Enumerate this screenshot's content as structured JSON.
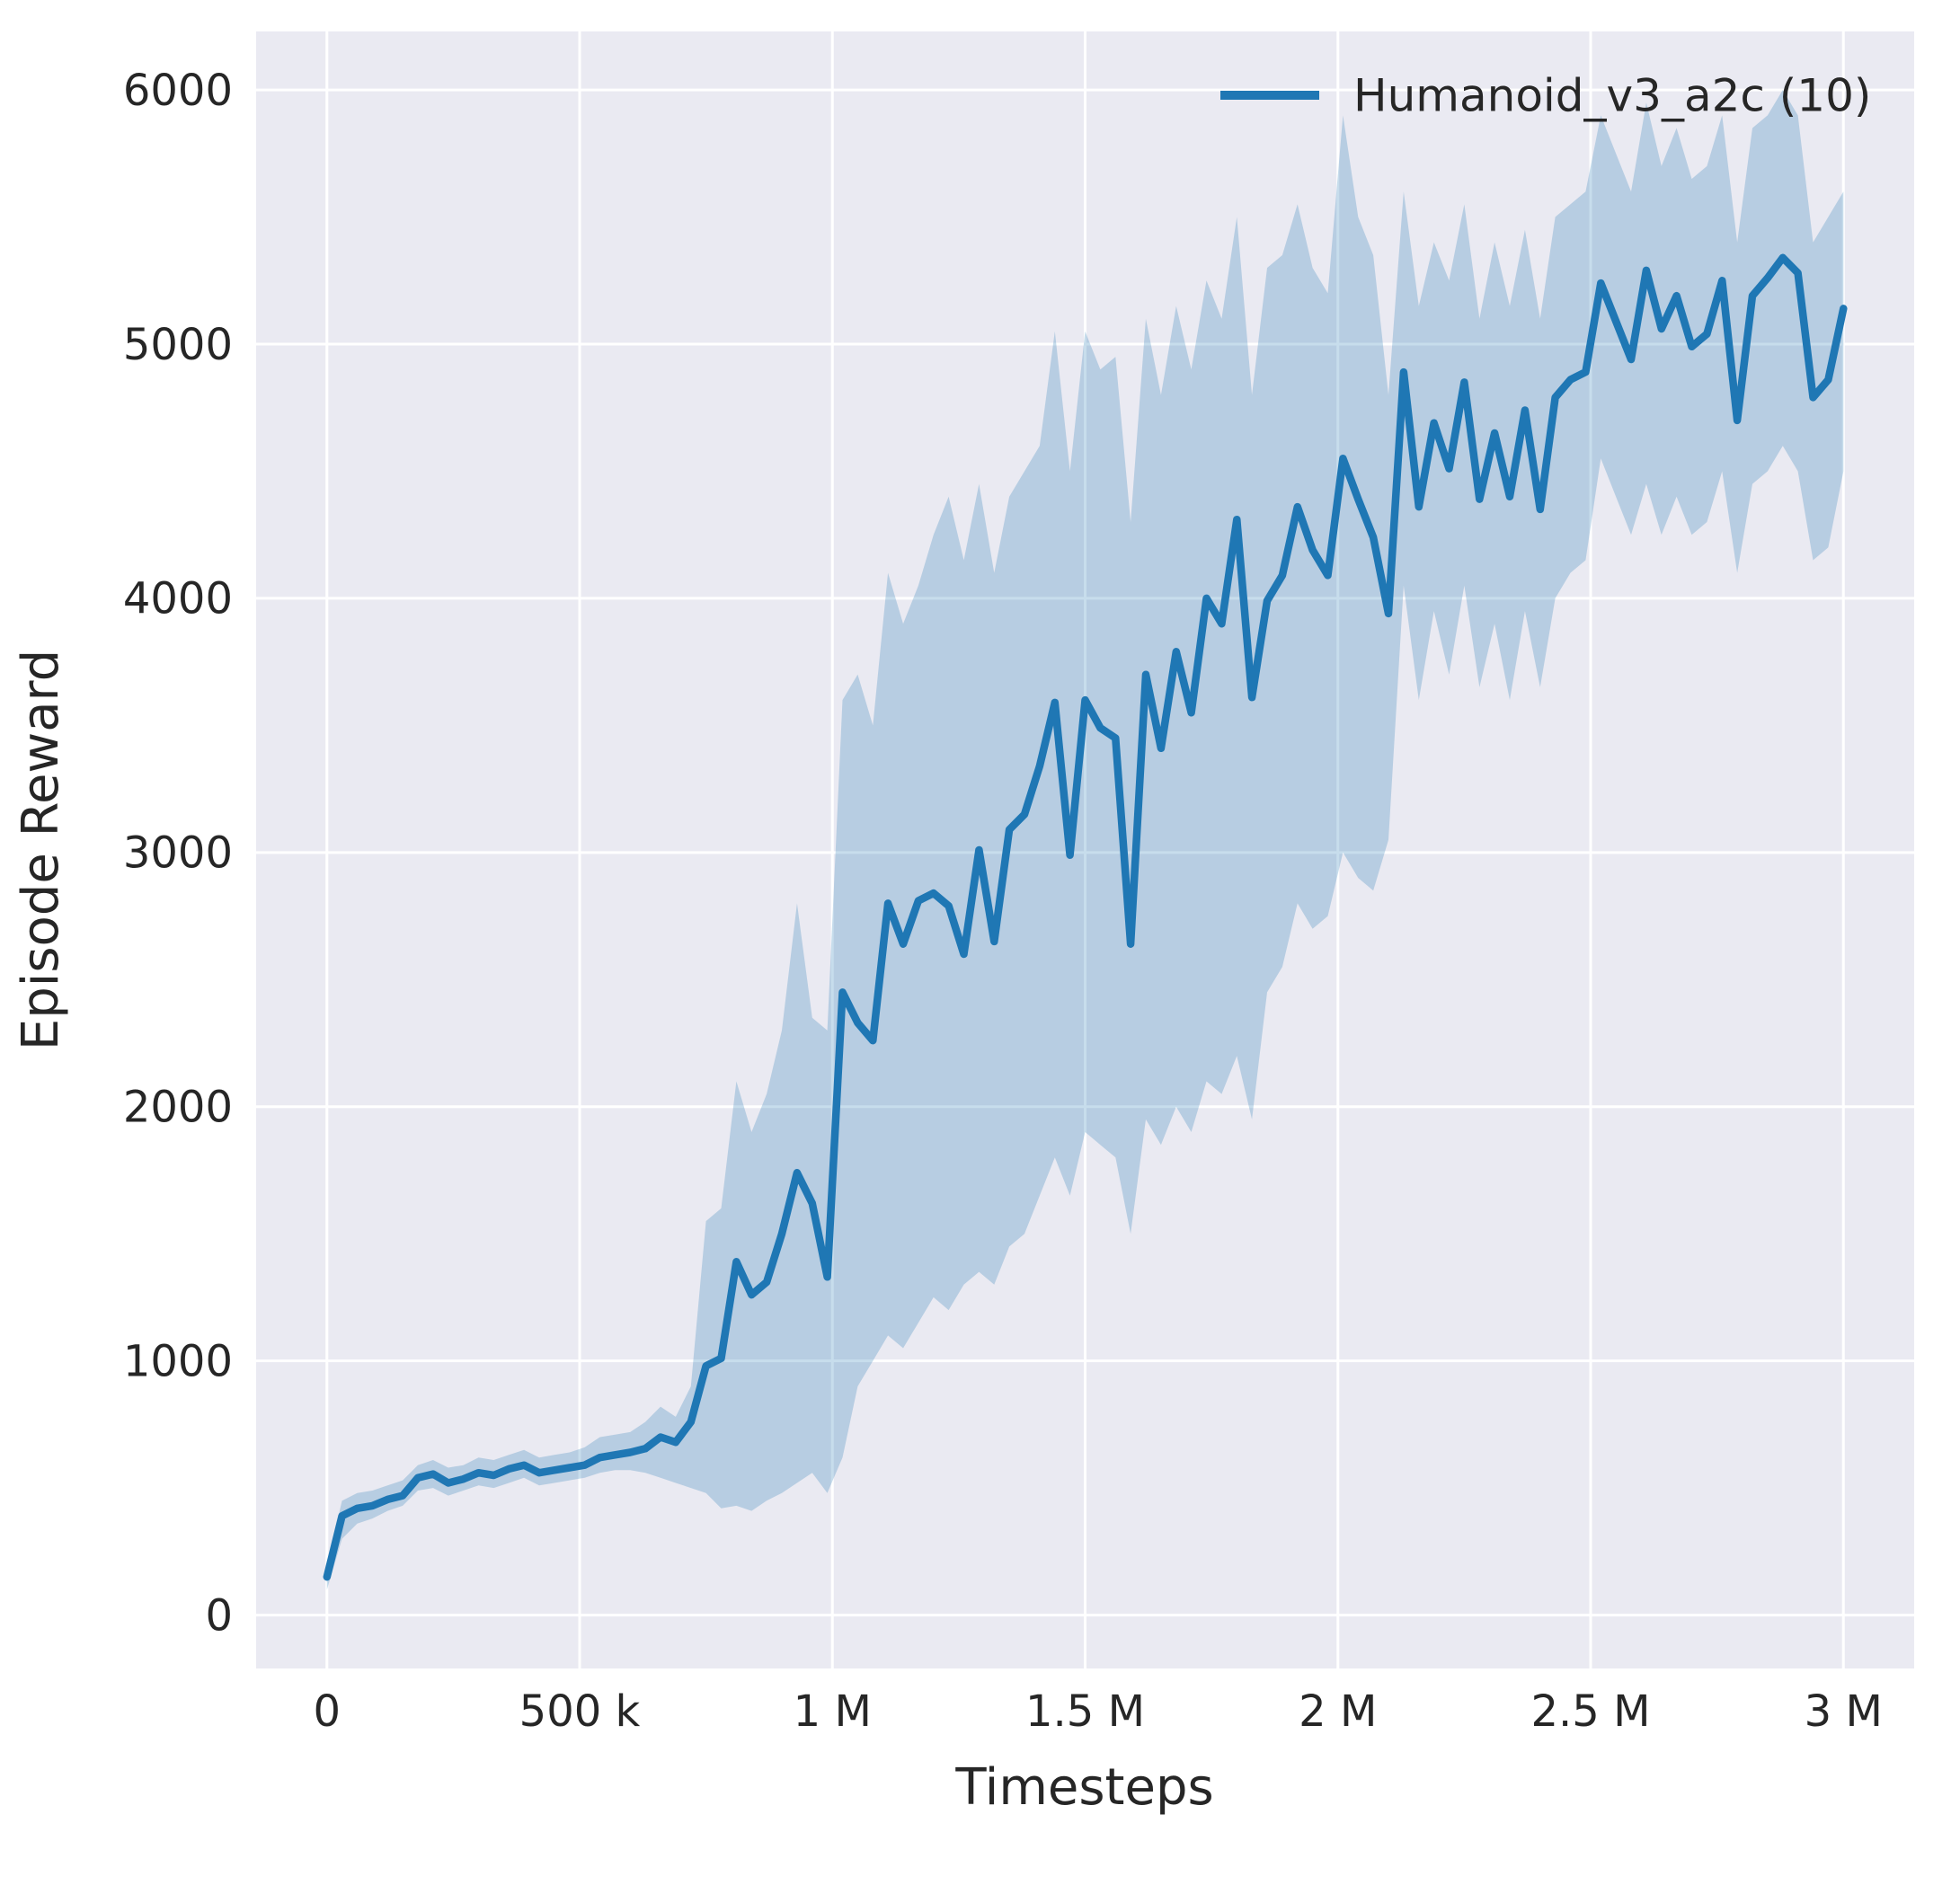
{
  "figure": {
    "background": "#ffffff",
    "plot_background": "#eaeaf2",
    "grid_color": "#ffffff",
    "text_color": "#262626"
  },
  "chart_data": {
    "type": "line",
    "title": "",
    "xlabel": "Timesteps",
    "ylabel": "Episode Reward",
    "grid": true,
    "legend_position": "upper right",
    "xlim": [
      -140000,
      3140000
    ],
    "ylim": [
      -210,
      6230
    ],
    "x_ticks": {
      "values": [
        0,
        500000,
        1000000,
        1500000,
        2000000,
        2500000,
        3000000
      ],
      "labels": [
        "0",
        "500 k",
        "1 M",
        "1.5 M",
        "2 M",
        "2.5 M",
        "3 M"
      ]
    },
    "y_ticks": {
      "values": [
        0,
        1000,
        2000,
        3000,
        4000,
        5000,
        6000
      ],
      "labels": [
        "0",
        "1000",
        "2000",
        "3000",
        "4000",
        "5000",
        "6000"
      ]
    },
    "x": [
      0,
      30000,
      60000,
      90000,
      120000,
      150000,
      180000,
      210000,
      240000,
      270000,
      300000,
      330000,
      360000,
      390000,
      420000,
      450000,
      480000,
      510000,
      540000,
      570000,
      600000,
      630000,
      660000,
      690000,
      720000,
      750000,
      780000,
      810000,
      840000,
      870000,
      900000,
      930000,
      960000,
      990000,
      1020000,
      1050000,
      1080000,
      1110000,
      1140000,
      1170000,
      1200000,
      1230000,
      1260000,
      1290000,
      1320000,
      1350000,
      1380000,
      1410000,
      1440000,
      1470000,
      1500000,
      1530000,
      1560000,
      1590000,
      1620000,
      1650000,
      1680000,
      1710000,
      1740000,
      1770000,
      1800000,
      1830000,
      1860000,
      1890000,
      1920000,
      1950000,
      1980000,
      2010000,
      2040000,
      2070000,
      2100000,
      2130000,
      2160000,
      2190000,
      2220000,
      2250000,
      2280000,
      2310000,
      2340000,
      2370000,
      2400000,
      2430000,
      2460000,
      2490000,
      2520000,
      2550000,
      2580000,
      2610000,
      2640000,
      2670000,
      2700000,
      2730000,
      2760000,
      2790000,
      2820000,
      2850000,
      2880000,
      2910000,
      2940000,
      2970000,
      3000000
    ],
    "series": [
      {
        "name": "Humanoid_v3_a2c (10)",
        "color": "#1f77b4",
        "band_opacity": 0.25,
        "line_width": 8.5,
        "mean": [
          150,
          390,
          420,
          430,
          455,
          470,
          540,
          555,
          520,
          535,
          560,
          550,
          575,
          590,
          560,
          570,
          580,
          590,
          620,
          630,
          640,
          655,
          700,
          680,
          760,
          980,
          1010,
          1390,
          1260,
          1310,
          1500,
          1740,
          1620,
          1330,
          2450,
          2330,
          2260,
          2800,
          2640,
          2810,
          2840,
          2790,
          2600,
          3010,
          2650,
          3090,
          3150,
          3340,
          3590,
          2990,
          3600,
          3490,
          3450,
          2640,
          3700,
          3410,
          3790,
          3550,
          4000,
          3900,
          4310,
          3610,
          3990,
          4090,
          4360,
          4190,
          4090,
          4550,
          4390,
          4240,
          3940,
          4890,
          4360,
          4690,
          4510,
          4850,
          4390,
          4650,
          4400,
          4740,
          4350,
          4790,
          4860,
          4890,
          5240,
          5090,
          4940,
          5290,
          5060,
          5190,
          4990,
          5040,
          5250,
          4700,
          5190,
          5260,
          5340,
          5280,
          4790,
          4860,
          5140
        ],
        "band_lower": [
          100,
          300,
          360,
          380,
          410,
          430,
          490,
          500,
          470,
          490,
          510,
          500,
          520,
          540,
          510,
          520,
          530,
          540,
          560,
          570,
          570,
          560,
          540,
          520,
          500,
          480,
          420,
          430,
          410,
          450,
          480,
          520,
          560,
          480,
          620,
          900,
          1000,
          1100,
          1050,
          1150,
          1250,
          1200,
          1300,
          1350,
          1300,
          1450,
          1500,
          1650,
          1800,
          1650,
          1900,
          1850,
          1800,
          1500,
          1950,
          1850,
          2000,
          1900,
          2100,
          2050,
          2200,
          1950,
          2450,
          2550,
          2800,
          2700,
          2750,
          3000,
          2900,
          2850,
          3050,
          4050,
          3600,
          3950,
          3700,
          4050,
          3650,
          3900,
          3600,
          3950,
          3650,
          4000,
          4100,
          4150,
          4550,
          4400,
          4250,
          4450,
          4250,
          4400,
          4250,
          4300,
          4500,
          4100,
          4450,
          4500,
          4600,
          4500,
          4150,
          4200,
          4500
        ],
        "band_upper": [
          200,
          450,
          480,
          490,
          510,
          530,
          590,
          610,
          580,
          590,
          620,
          610,
          630,
          650,
          620,
          630,
          640,
          660,
          700,
          710,
          720,
          760,
          820,
          780,
          900,
          1550,
          1600,
          2100,
          1900,
          2050,
          2300,
          2800,
          2350,
          2300,
          3600,
          3700,
          3500,
          4100,
          3900,
          4050,
          4250,
          4400,
          4150,
          4450,
          4100,
          4400,
          4500,
          4600,
          5050,
          4500,
          5050,
          4900,
          4950,
          4300,
          5100,
          4800,
          5150,
          4900,
          5250,
          5100,
          5500,
          4800,
          5300,
          5350,
          5550,
          5300,
          5200,
          5900,
          5500,
          5350,
          4800,
          5600,
          5150,
          5400,
          5250,
          5550,
          5100,
          5400,
          5150,
          5450,
          5100,
          5500,
          5550,
          5600,
          5900,
          5750,
          5600,
          5950,
          5700,
          5850,
          5650,
          5700,
          5900,
          5400,
          5850,
          5900,
          6000,
          5900,
          5400,
          5500,
          5600
        ]
      }
    ]
  }
}
